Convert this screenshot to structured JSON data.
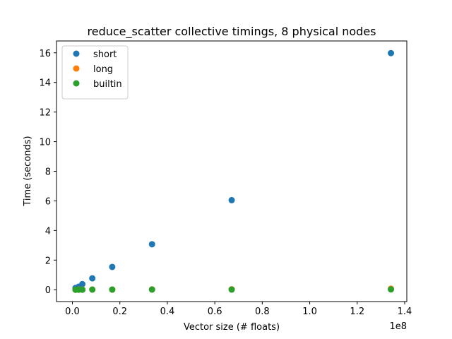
{
  "chart_data": {
    "type": "scatter",
    "title": "reduce_scatter collective timings, 8 physical nodes",
    "xlabel": "Vector size (# floats)",
    "ylabel": "Time (seconds)",
    "x_multiplier_label": "1e8",
    "xlim": [
      -0.067,
      1.409
    ],
    "ylim": [
      -0.8,
      16.8
    ],
    "x_ticks": [
      0.0,
      0.2,
      0.4,
      0.6,
      0.8,
      1.0,
      1.2,
      1.4
    ],
    "x_tick_labels": [
      "0.0",
      "0.2",
      "0.4",
      "0.6",
      "0.8",
      "1.0",
      "1.2",
      "1.4"
    ],
    "y_ticks": [
      0,
      2,
      4,
      6,
      8,
      10,
      12,
      14,
      16
    ],
    "y_tick_labels": [
      "0",
      "2",
      "4",
      "6",
      "8",
      "10",
      "12",
      "14",
      "16"
    ],
    "grid": false,
    "legend_position": "top-left",
    "x": [
      0.0131,
      0.0262,
      0.0419,
      0.0839,
      0.1678,
      0.3355,
      0.6711,
      1.3422
    ],
    "series": [
      {
        "name": "short",
        "color": "#1f77b4",
        "y": [
          0.12,
          0.2,
          0.38,
          0.77,
          1.54,
          3.07,
          6.05,
          15.98
        ]
      },
      {
        "name": "long",
        "color": "#ff7f0e",
        "y": [
          0.0,
          0.01,
          0.01,
          0.01,
          0.01,
          0.02,
          0.03,
          0.07
        ]
      },
      {
        "name": "builtin",
        "color": "#2ca02c",
        "y": [
          0.0,
          0.0,
          0.0,
          0.01,
          0.01,
          0.01,
          0.01,
          0.02
        ]
      }
    ]
  }
}
